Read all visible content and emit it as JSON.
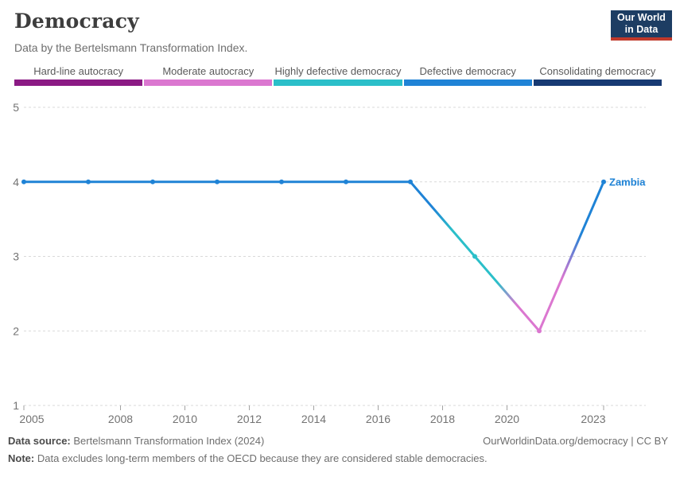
{
  "header": {
    "title": "Democracy",
    "subtitle": "Data by the Bertelsmann Transformation Index.",
    "logo": {
      "line1": "Our World",
      "line2": "in Data",
      "bg_color": "#1d3d63",
      "accent_color": "#c0392b"
    }
  },
  "legend": {
    "items": [
      {
        "label": "Hard-line autocracy",
        "color": "#8b1a84"
      },
      {
        "label": "Moderate autocracy",
        "color": "#db77d0"
      },
      {
        "label": "Highly defective democracy",
        "color": "#2bbfc9"
      },
      {
        "label": "Defective democracy",
        "color": "#1f83d6"
      },
      {
        "label": "Consolidating democracy",
        "color": "#173a73"
      }
    ]
  },
  "chart_data": {
    "type": "line",
    "title": "Democracy",
    "xlabel": "",
    "ylabel": "",
    "xlim": [
      2005,
      2023
    ],
    "ylim": [
      1,
      5
    ],
    "grid": "horizontal-dashed",
    "legend_position": "top-bins",
    "x_ticks": [
      2005,
      2008,
      2010,
      2012,
      2014,
      2016,
      2018,
      2020,
      2023
    ],
    "y_ticks": [
      1,
      2,
      3,
      4,
      5
    ],
    "series": [
      {
        "name": "Zambia",
        "x": [
          2005,
          2007,
          2009,
          2011,
          2013,
          2015,
          2017,
          2019,
          2021,
          2023
        ],
        "values": [
          4,
          4,
          4,
          4,
          4,
          4,
          4,
          3,
          2,
          4
        ],
        "label_color": "#1f83d6"
      }
    ],
    "value_categories": {
      "1": "Hard-line autocracy",
      "2": "Moderate autocracy",
      "3": "Highly defective democracy",
      "4": "Defective democracy",
      "5": "Consolidating democracy"
    },
    "grid_color": "#d9d9d9",
    "tick_color": "#a3a3a3"
  },
  "footer": {
    "source_label": "Data source:",
    "source_value": "Bertelsmann Transformation Index (2024)",
    "origin": "OurWorldinData.org/democracy | CC BY",
    "note_label": "Note:",
    "note_value": "Data excludes long-term members of the OECD because they are considered stable democracies."
  }
}
